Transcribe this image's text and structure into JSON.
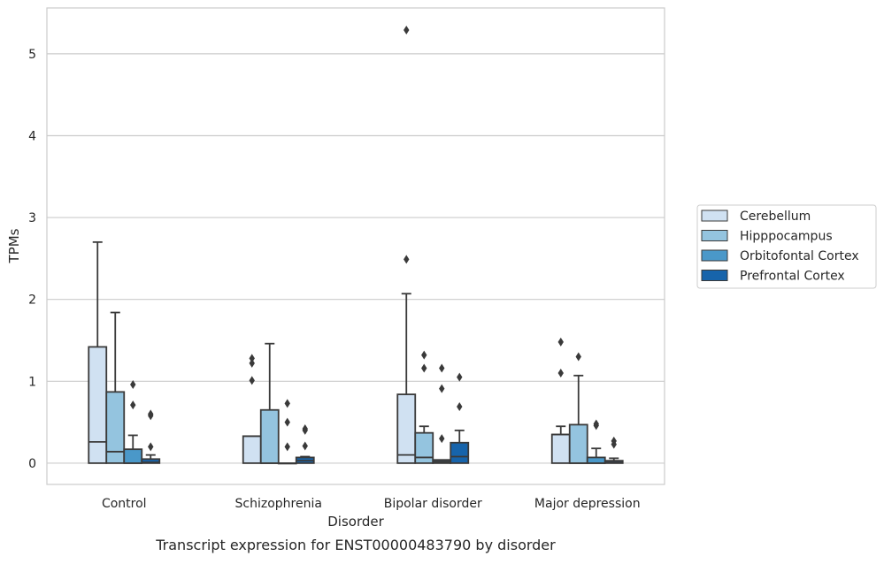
{
  "chart_data": {
    "type": "box",
    "title": "",
    "caption": "Transcript expression for ENST00000483790 by disorder",
    "xlabel": "Disorder",
    "ylabel": "TPMs",
    "ylim": [
      -0.26,
      5.56
    ],
    "yticks": [
      0,
      1,
      2,
      3,
      4,
      5
    ],
    "grid": "horizontal",
    "legend_position": "right",
    "categories": [
      "Control",
      "Schizophrenia",
      "Bipolar disorder",
      "Major depression"
    ],
    "series": [
      {
        "name": "Cerebellum",
        "color": "#d0e1f2",
        "boxes": [
          {
            "q1": 0,
            "median": 0.26,
            "q3": 1.42,
            "whisker_low": 0,
            "whisker_high": 2.7,
            "outliers": []
          },
          {
            "q1": 0,
            "median": 0.33,
            "q3": 0.33,
            "whisker_low": 0,
            "whisker_high": 0.33,
            "outliers": [
              1.28,
              1.22,
              1.01
            ]
          },
          {
            "q1": 0,
            "median": 0.1,
            "q3": 0.84,
            "whisker_low": 0,
            "whisker_high": 2.07,
            "outliers": [
              5.29,
              2.49
            ]
          },
          {
            "q1": 0,
            "median": 0.35,
            "q3": 0.35,
            "whisker_low": 0,
            "whisker_high": 0.45,
            "outliers": [
              1.48,
              1.1
            ]
          }
        ]
      },
      {
        "name": "Hipppocampus",
        "color": "#94c4df",
        "boxes": [
          {
            "q1": 0,
            "median": 0.14,
            "q3": 0.87,
            "whisker_low": 0,
            "whisker_high": 1.84,
            "outliers": []
          },
          {
            "q1": 0,
            "median": 0,
            "q3": 0.65,
            "whisker_low": 0,
            "whisker_high": 1.46,
            "outliers": []
          },
          {
            "q1": 0,
            "median": 0.07,
            "q3": 0.37,
            "whisker_low": 0,
            "whisker_high": 0.45,
            "outliers": [
              1.32,
              1.16
            ]
          },
          {
            "q1": 0,
            "median": 0,
            "q3": 0.47,
            "whisker_low": 0,
            "whisker_high": 1.07,
            "outliers": [
              1.3
            ]
          }
        ]
      },
      {
        "name": "Orbitofontal Cortex",
        "color": "#4a98c9",
        "boxes": [
          {
            "q1": 0,
            "median": 0,
            "q3": 0.17,
            "whisker_low": 0,
            "whisker_high": 0.34,
            "outliers": [
              0.96,
              0.71
            ]
          },
          {
            "q1": 0,
            "median": 0,
            "q3": 0,
            "whisker_low": 0,
            "whisker_high": 0,
            "outliers": [
              0.73,
              0.5,
              0.2
            ]
          },
          {
            "q1": 0,
            "median": 0.02,
            "q3": 0.04,
            "whisker_low": 0,
            "whisker_high": 0.04,
            "outliers": [
              1.16,
              0.91,
              0.3
            ]
          },
          {
            "q1": 0,
            "median": 0,
            "q3": 0.07,
            "whisker_low": 0,
            "whisker_high": 0.18,
            "outliers": [
              0.48,
              0.46
            ]
          }
        ]
      },
      {
        "name": "Prefrontal Cortex",
        "color": "#1764ab",
        "boxes": [
          {
            "q1": 0,
            "median": 0.01,
            "q3": 0.05,
            "whisker_low": 0,
            "whisker_high": 0.1,
            "outliers": [
              0.6,
              0.58,
              0.2
            ]
          },
          {
            "q1": 0,
            "median": 0.03,
            "q3": 0.07,
            "whisker_low": 0,
            "whisker_high": 0.08,
            "outliers": [
              0.42,
              0.4,
              0.21
            ]
          },
          {
            "q1": 0,
            "median": 0.08,
            "q3": 0.25,
            "whisker_low": 0,
            "whisker_high": 0.4,
            "outliers": [
              1.05,
              0.69
            ]
          },
          {
            "q1": 0,
            "median": 0.01,
            "q3": 0.03,
            "whisker_low": 0,
            "whisker_high": 0.06,
            "outliers": [
              0.27,
              0.23
            ]
          }
        ]
      }
    ]
  }
}
